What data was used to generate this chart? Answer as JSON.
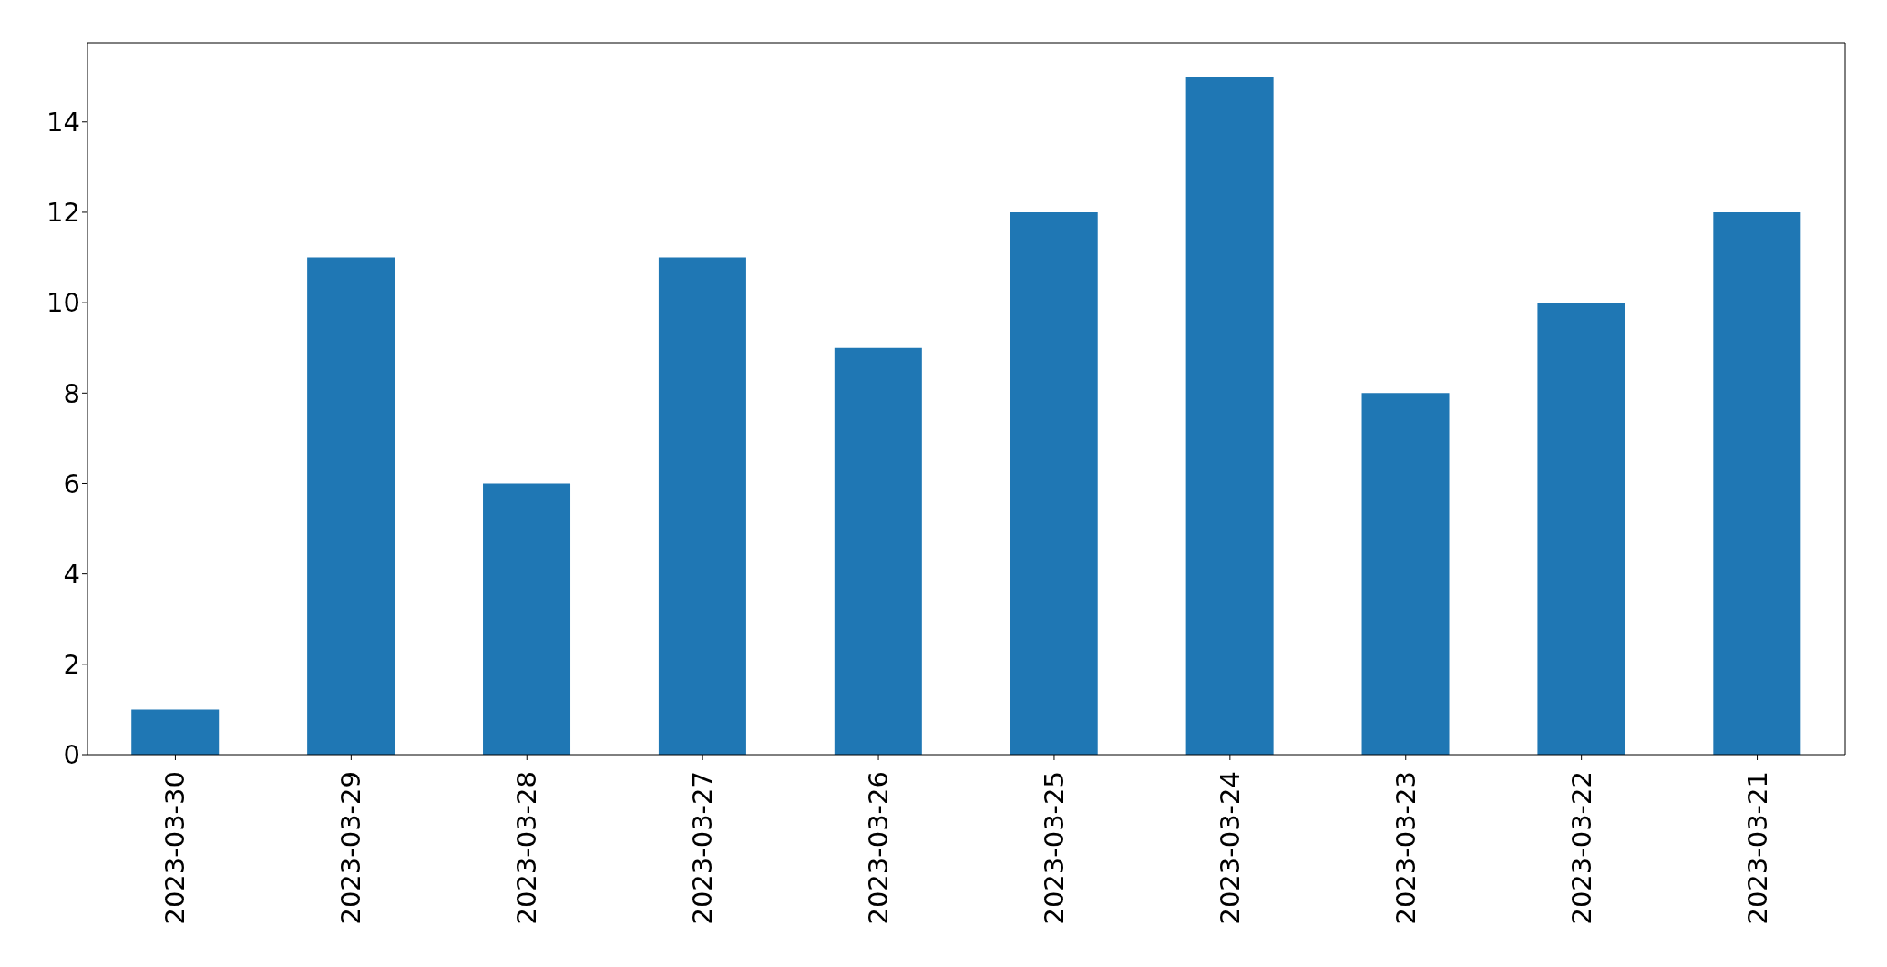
{
  "chart_data": {
    "type": "bar",
    "categories": [
      "2023-03-30",
      "2023-03-29",
      "2023-03-28",
      "2023-03-27",
      "2023-03-26",
      "2023-03-25",
      "2023-03-24",
      "2023-03-23",
      "2023-03-22",
      "2023-03-21"
    ],
    "values": [
      1,
      11,
      6,
      11,
      9,
      12,
      15,
      8,
      10,
      12
    ],
    "color": "#1f77b4",
    "ylim": [
      0,
      15.75
    ],
    "yticks": [
      0,
      2,
      4,
      6,
      8,
      10,
      12,
      14
    ]
  }
}
